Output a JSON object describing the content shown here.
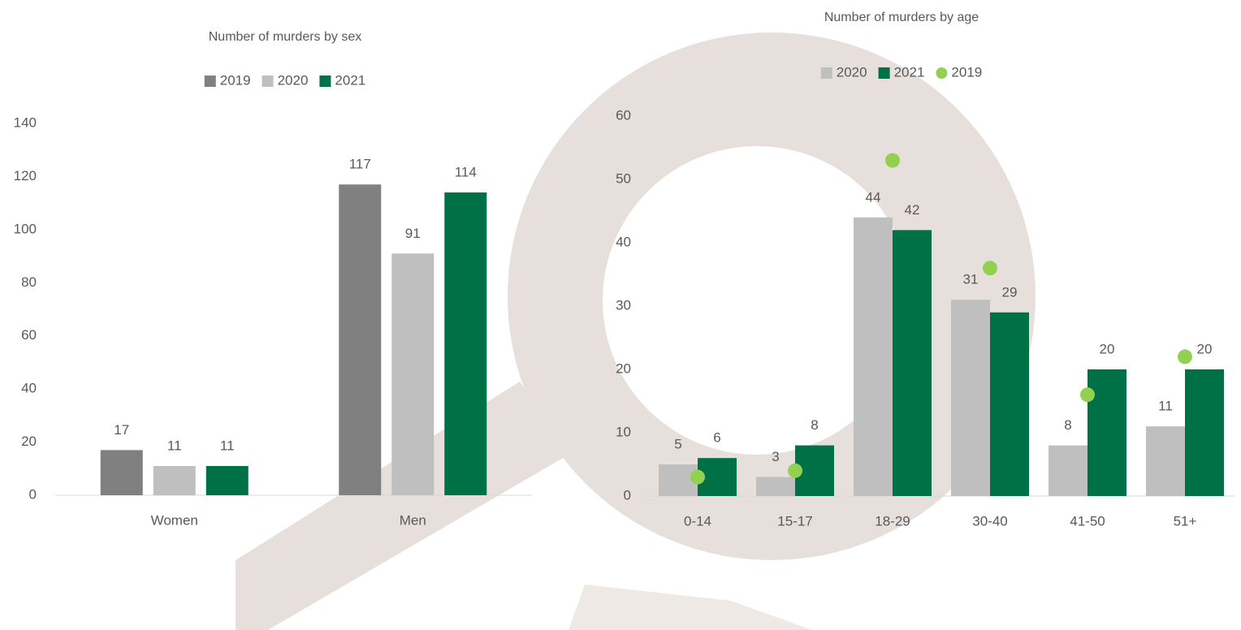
{
  "chart_data": [
    {
      "type": "bar",
      "title": "Number of murders by sex",
      "categories": [
        "Women",
        "Men"
      ],
      "series": [
        {
          "name": "2019",
          "color": "#808080",
          "type": "bar",
          "data_labels": true,
          "values": [
            17,
            117
          ]
        },
        {
          "name": "2020",
          "color": "#bfbfbf",
          "type": "bar",
          "data_labels": true,
          "values": [
            11,
            91
          ]
        },
        {
          "name": "2021",
          "color": "#007046",
          "type": "bar",
          "data_labels": true,
          "values": [
            11,
            114
          ]
        }
      ],
      "ylim": [
        0,
        140
      ],
      "yticks": [
        0,
        20,
        40,
        60,
        80,
        100,
        120,
        140
      ],
      "grid": false
    },
    {
      "type": "bar",
      "title": "Number of murders by age",
      "categories": [
        "0-14",
        "15-17",
        "18-29",
        "30-40",
        "41-50",
        "51+"
      ],
      "series": [
        {
          "name": "2020",
          "color": "#bfbfbf",
          "type": "bar",
          "data_labels": true,
          "values": [
            5,
            3,
            44,
            31,
            8,
            11
          ]
        },
        {
          "name": "2021",
          "color": "#007046",
          "type": "bar",
          "data_labels": true,
          "values": [
            6,
            8,
            42,
            29,
            20,
            20
          ]
        },
        {
          "name": "2019",
          "color": "#92d050",
          "type": "scatter",
          "data_labels": false,
          "values": [
            3,
            4,
            53,
            36,
            16,
            22
          ]
        }
      ],
      "ylim": [
        0,
        60
      ],
      "yticks": [
        0,
        10,
        20,
        30,
        40,
        50,
        60
      ],
      "grid": false
    }
  ]
}
